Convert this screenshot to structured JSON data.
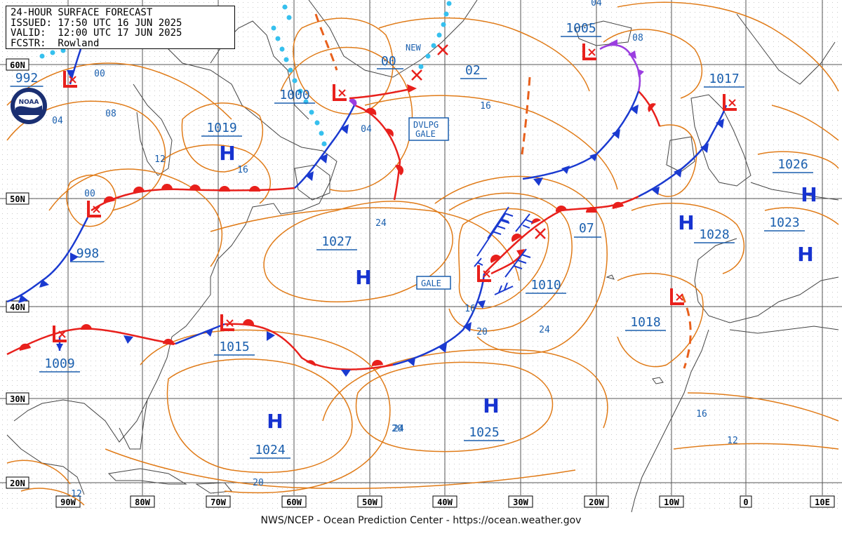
{
  "header": {
    "title": "24-HOUR SURFACE FORECAST",
    "issued": "ISSUED: 17:50 UTC 16 JUN 2025",
    "valid": "VALID:  12:00 UTC 17 JUN 2025",
    "forecaster": "FCSTR:  Rowland"
  },
  "footer": "NWS/NCEP - Ocean Prediction Center - https://ocean.weather.gov",
  "logo_text": "NOAA",
  "colors": {
    "isobar": "#e07b18",
    "warm_front": "#e8201c",
    "cold_front": "#1a3ad0",
    "occluded": "#9b3ee0",
    "high": "#1733d0",
    "low": "#e8201c",
    "label": "#1a5fae",
    "ice": "#36c0ee",
    "grid": "#555555"
  },
  "lat_labels": [
    "60N",
    "50N",
    "40N",
    "30N",
    "20N"
  ],
  "lon_labels": [
    "90W",
    "80W",
    "70W",
    "60W",
    "50W",
    "40W",
    "30W",
    "20W",
    "10W",
    "0",
    "10E"
  ],
  "highs": [
    {
      "id": "h1",
      "pressure": "1019"
    },
    {
      "id": "h2",
      "pressure": "1027"
    },
    {
      "id": "h3",
      "pressure": "1024"
    },
    {
      "id": "h4",
      "pressure": "1025"
    },
    {
      "id": "h5",
      "pressure": "1028"
    },
    {
      "id": "h6",
      "pressure": "1026"
    },
    {
      "id": "h7",
      "pressure": "1023"
    }
  ],
  "lows": [
    {
      "id": "l1",
      "pressure": "1000"
    },
    {
      "id": "l2",
      "pressure": "998"
    },
    {
      "id": "l3",
      "pressure": "1009"
    },
    {
      "id": "l4",
      "pressure": "1015"
    },
    {
      "id": "l5",
      "pressure": "1010"
    },
    {
      "id": "l6",
      "pressure": "1005"
    },
    {
      "id": "l7",
      "pressure": "1017"
    },
    {
      "id": "l8",
      "pressure": "1018"
    },
    {
      "id": "l9",
      "pressure": "992"
    }
  ],
  "misc_labels": {
    "new": "NEW",
    "p00": "00",
    "p02": "02",
    "p07": "07",
    "warning_devgale_1": "DVLPG",
    "warning_devgale_2": "GALE",
    "warning_gale": "GALE"
  },
  "isobar_labels": [
    "04",
    "00",
    "08",
    "04",
    "12",
    "16",
    "04",
    "16",
    "00",
    "24",
    "16",
    "20",
    "24",
    "08",
    "24",
    "20",
    "16",
    "12",
    "20",
    "12"
  ]
}
